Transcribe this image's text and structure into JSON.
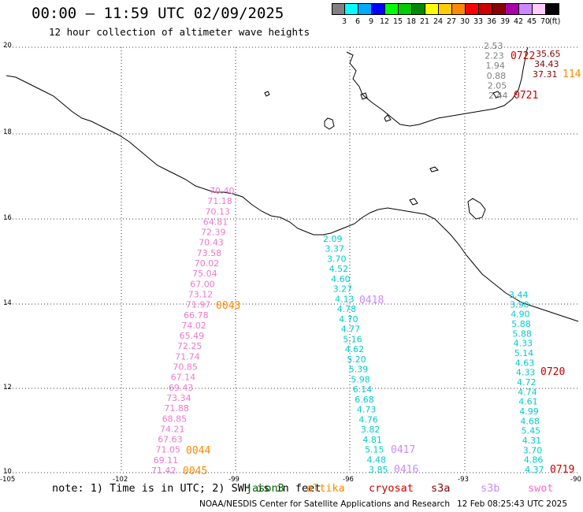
{
  "header": {
    "title": "00:00 – 11:59 UTC 02/09/2025",
    "subtitle": "12 hour collection of altimeter wave heights"
  },
  "legend": {
    "unit": "(ft)",
    "colors": [
      "#808080",
      "#00ffff",
      "#00aaff",
      "#0000ff",
      "#00ff00",
      "#00cc00",
      "#008800",
      "#ffff00",
      "#ffcc00",
      "#ff8800",
      "#ff0000",
      "#cc0000",
      "#880000",
      "#aa00aa",
      "#cc88ff",
      "#ffccff",
      "#000000"
    ],
    "labels": [
      "3",
      "6",
      "9",
      "12",
      "15",
      "18",
      "21",
      "24",
      "27",
      "30",
      "33",
      "36",
      "39",
      "42",
      "45",
      "70"
    ]
  },
  "axes": {
    "lat_labels": [
      "20",
      "18",
      "16",
      "14",
      "12",
      "10"
    ],
    "lon_labels": [
      "-105",
      "-102",
      "-99",
      "-96",
      "-93",
      "-90"
    ]
  },
  "tracks": {
    "gray": [
      "2.53",
      "2.23",
      "1.94",
      "0.88",
      "2.05",
      "2.44"
    ],
    "darkred": [
      "35.65",
      "34.43",
      "37.31"
    ],
    "pink": [
      "70.40",
      "71.18",
      "70.13",
      "64.81",
      "72.39",
      "70.43",
      "73.58",
      "70.02",
      "75.04",
      "67.00",
      "73.12",
      "71.97",
      "66.78",
      "74.02",
      "65.49",
      "72.25",
      "71.74",
      "70.85",
      "67.14",
      "69.43",
      "73.34",
      "71.88",
      "68.85",
      "74.21",
      "67.63",
      "71.05",
      "69.11",
      "71.42"
    ],
    "cyan_center": [
      "2.09",
      "3.37",
      "3.70",
      "4.52",
      "4.60",
      "3.27",
      "4.13",
      "4.78",
      "4.70",
      "4.77",
      "5.16",
      "4.62",
      "5.20",
      "5.39",
      "5.98",
      "6.14",
      "6.68",
      "4.73",
      "4.76",
      "3.82",
      "4.81",
      "5.15",
      "4.48",
      "3.85"
    ],
    "cyan_right": [
      "3.44",
      "3.90",
      "4.90",
      "5.88",
      "5.88",
      "4.33",
      "5.14",
      "4.63",
      "4.33",
      "4.72",
      "4.74",
      "4.61",
      "4.99",
      "4.68",
      "5.45",
      "4.31",
      "3.70",
      "4.86",
      "4.37"
    ]
  },
  "pass_labels": {
    "p0722": "0722",
    "p114": "114",
    "p0721": "0721",
    "p0043": "0043",
    "p0418": "0418",
    "p0720": "0720",
    "p0044": "0044",
    "p0045": "0045",
    "p0417": "0417",
    "p0416": "0416",
    "p0719": "0719"
  },
  "footer": {
    "note": "note: 1) Time is in UTC; 2) SWH is in feet",
    "sats": [
      {
        "name": "jason3",
        "color": "#006600"
      },
      {
        "name": "altika",
        "color": "#ff8800"
      },
      {
        "name": "cryosat",
        "color": "#cc0000"
      },
      {
        "name": "s3a",
        "color": "#880000"
      },
      {
        "name": "s3b",
        "color": "#cc88ff"
      },
      {
        "name": "swot",
        "color": "#ff66cc"
      }
    ],
    "credit": "NOAA/NESDIS Center for Satellite Applications and Research",
    "timestamp": "12 Feb 08:25:43 UTC 2025"
  }
}
